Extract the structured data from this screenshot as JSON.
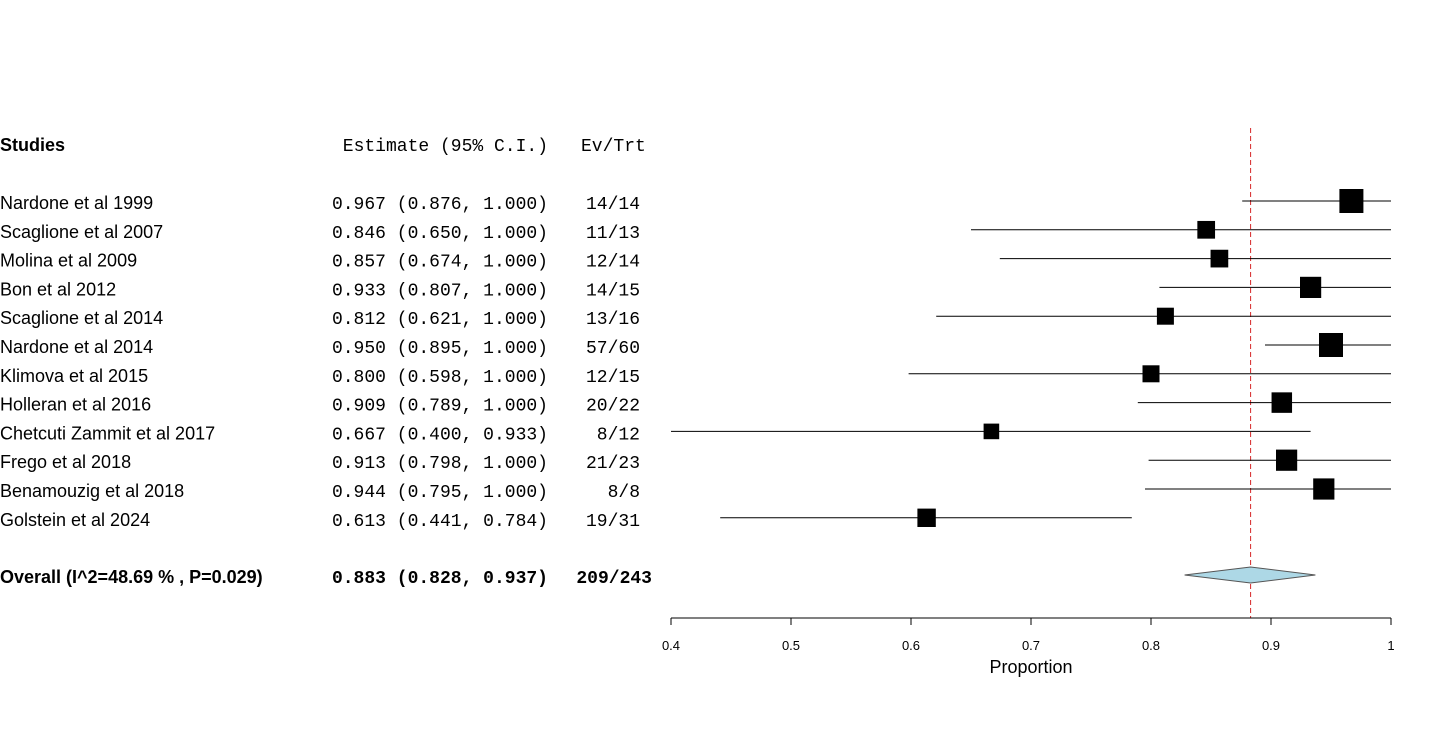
{
  "chart_data": {
    "type": "forest",
    "headers": {
      "studies": "Studies",
      "estimate": "Estimate (95% C.I.)",
      "events": "Ev/Trt"
    },
    "studies": [
      {
        "name": "Nardone et al 1999",
        "estimate": 0.967,
        "lower": 0.876,
        "upper": 1.0,
        "ci_text": "0.967 (0.876, 1.000)",
        "events": "14/14",
        "weight": 1.0
      },
      {
        "name": "Scaglione et al 2007",
        "estimate": 0.846,
        "lower": 0.65,
        "upper": 1.0,
        "ci_text": "0.846 (0.650, 1.000)",
        "events": "11/13",
        "weight": 0.55
      },
      {
        "name": "Molina et al 2009",
        "estimate": 0.857,
        "lower": 0.674,
        "upper": 1.0,
        "ci_text": "0.857 (0.674, 1.000)",
        "events": "12/14",
        "weight": 0.55
      },
      {
        "name": "Bon et al 2012",
        "estimate": 0.933,
        "lower": 0.807,
        "upper": 1.0,
        "ci_text": "0.933 (0.807, 1.000)",
        "events": "14/15",
        "weight": 0.8
      },
      {
        "name": "Scaglione  et al 2014",
        "estimate": 0.812,
        "lower": 0.621,
        "upper": 1.0,
        "ci_text": "0.812 (0.621, 1.000)",
        "events": "13/16",
        "weight": 0.5
      },
      {
        "name": "Nardone  et al 2014",
        "estimate": 0.95,
        "lower": 0.895,
        "upper": 1.0,
        "ci_text": "0.950 (0.895, 1.000)",
        "events": "57/60",
        "weight": 1.0
      },
      {
        "name": "Klimova et al 2015",
        "estimate": 0.8,
        "lower": 0.598,
        "upper": 1.0,
        "ci_text": "0.800 (0.598, 1.000)",
        "events": "12/15",
        "weight": 0.5
      },
      {
        "name": "Holleran et al 2016",
        "estimate": 0.909,
        "lower": 0.789,
        "upper": 1.0,
        "ci_text": "0.909 (0.789, 1.000)",
        "events": "20/22",
        "weight": 0.75
      },
      {
        "name": "Chetcuti Zammit et al 2017",
        "estimate": 0.667,
        "lower": 0.4,
        "upper": 0.933,
        "ci_text": "0.667 (0.400, 0.933)",
        "events": "8/12",
        "weight": 0.4
      },
      {
        "name": "Frego et al 2018",
        "estimate": 0.913,
        "lower": 0.798,
        "upper": 1.0,
        "ci_text": "0.913 (0.798, 1.000)",
        "events": "21/23",
        "weight": 0.8
      },
      {
        "name": "Benamouzig et al 2018",
        "estimate": 0.944,
        "lower": 0.795,
        "upper": 1.0,
        "ci_text": "0.944 (0.795, 1.000)",
        "events": "8/8",
        "weight": 0.8
      },
      {
        "name": "Golstein et al 2024",
        "estimate": 0.613,
        "lower": 0.441,
        "upper": 0.784,
        "ci_text": "0.613 (0.441, 0.784)",
        "events": "19/31",
        "weight": 0.6
      }
    ],
    "overall": {
      "name": "Overall (I^2=48.69 % , P=0.029)",
      "estimate": 0.883,
      "lower": 0.828,
      "upper": 0.937,
      "ci_text": "0.883 (0.828, 0.937)",
      "events": "209/243"
    },
    "xlim": [
      0.4,
      1.0
    ],
    "xticks": [
      "0.4",
      "0.5",
      "0.6",
      "0.7",
      "0.8",
      "0.9",
      "1"
    ],
    "xlabel": "Proportion",
    "colors": {
      "reference_line": "#d62728",
      "diamond_fill": "#add8e6",
      "marker": "#000000"
    }
  }
}
